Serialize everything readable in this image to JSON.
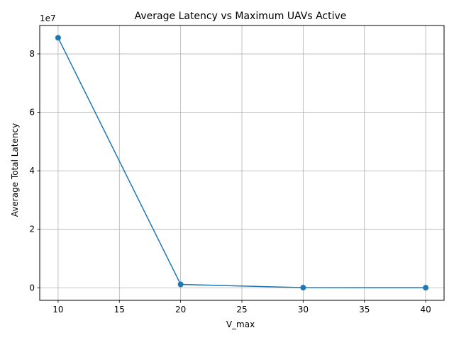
{
  "chart_data": {
    "type": "line",
    "title": "Average Latency vs Maximum UAVs Active",
    "xlabel": "V_max",
    "ylabel": "Average Total Latency",
    "y_offset_label": "1e7",
    "y_scale_factor": 10000000,
    "xlim": [
      8.5,
      41.5
    ],
    "ylim": [
      -4300000,
      89700000
    ],
    "x_ticks": [
      10,
      15,
      20,
      25,
      30,
      35,
      40
    ],
    "x_tick_labels": [
      "10",
      "15",
      "20",
      "25",
      "30",
      "35",
      "40"
    ],
    "y_ticks": [
      0,
      20000000,
      40000000,
      60000000,
      80000000
    ],
    "y_tick_labels": [
      "0",
      "2",
      "4",
      "6",
      "8"
    ],
    "grid": true,
    "series": [
      {
        "color": "#1f77b4",
        "marker": "circle",
        "x": [
          10,
          20,
          30,
          40
        ],
        "y": [
          85500000,
          1150000,
          50000,
          20000
        ]
      }
    ]
  }
}
